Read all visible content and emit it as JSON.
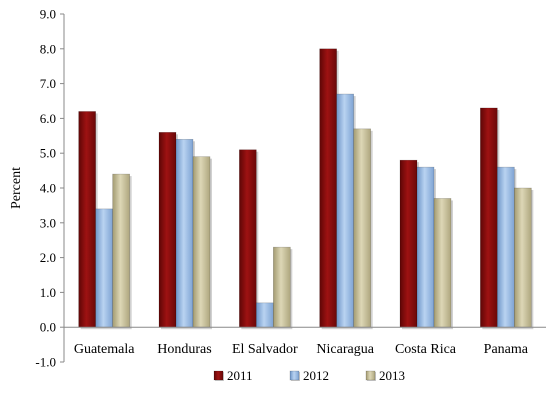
{
  "chart_data": {
    "type": "bar",
    "title": "",
    "xlabel": "",
    "ylabel": "Percent",
    "ylim": [
      -1.0,
      9.0
    ],
    "y_ticks": [
      "-1.0",
      "0.0",
      "1.0",
      "2.0",
      "3.0",
      "4.0",
      "5.0",
      "6.0",
      "7.0",
      "8.0",
      "9.0"
    ],
    "grid": false,
    "legend_position": "bottom",
    "categories": [
      "Guatemala",
      "Honduras",
      "El Salvador",
      "Nicaragua",
      "Costa Rica",
      "Panama"
    ],
    "series": [
      {
        "name": "2011",
        "color": "#8B0A0A",
        "values": [
          6.2,
          5.6,
          5.1,
          8.0,
          4.8,
          6.3
        ]
      },
      {
        "name": "2012",
        "color": "#8DB4E2",
        "values": [
          3.4,
          5.4,
          0.7,
          6.7,
          4.6,
          4.6
        ]
      },
      {
        "name": "2013",
        "color": "#C4BD97",
        "values": [
          4.4,
          4.9,
          2.3,
          5.7,
          3.7,
          4.0
        ]
      }
    ]
  }
}
